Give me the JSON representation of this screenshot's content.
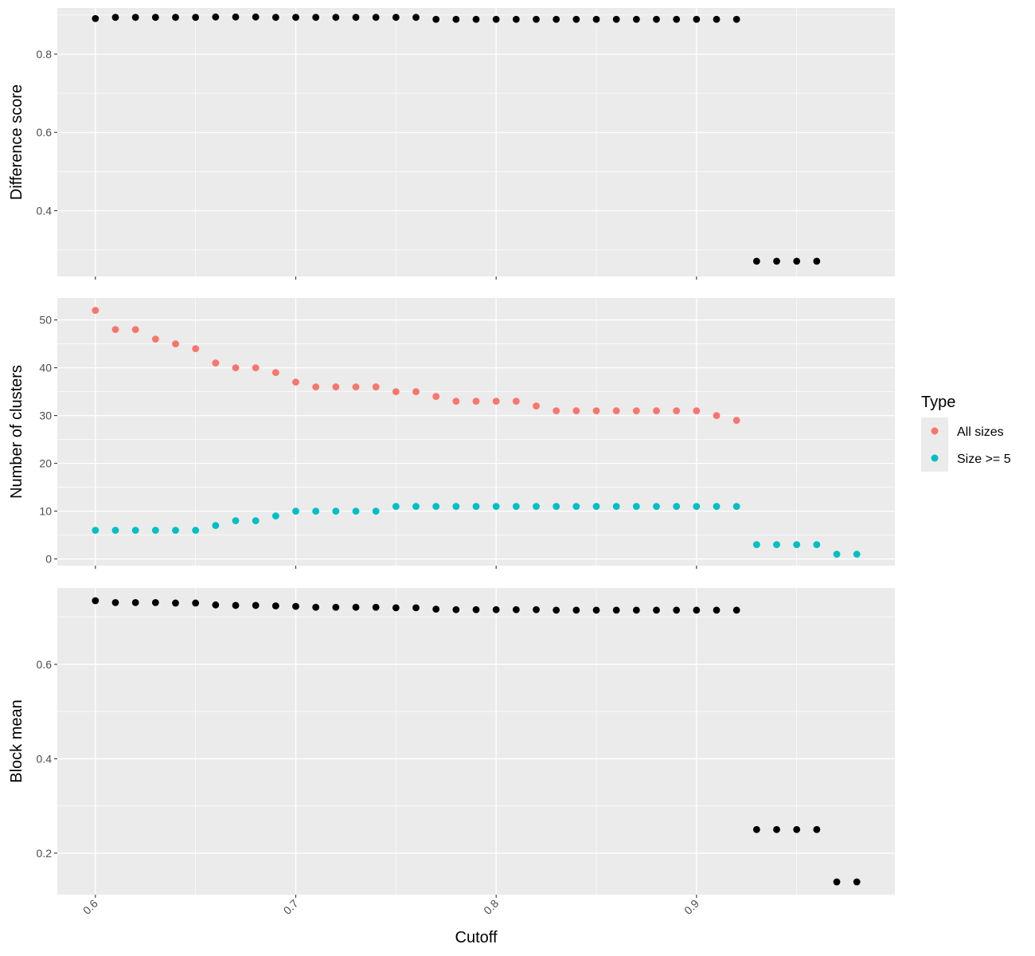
{
  "chart_data": {
    "type": "scatter",
    "x_axis": {
      "title": "Cutoff",
      "range": [
        0.581,
        0.999
      ],
      "ticks": [
        0.6,
        0.7,
        0.8,
        0.9
      ],
      "tick_labels": [
        "0.6",
        "0.7",
        "0.8",
        "0.9"
      ]
    },
    "legend": {
      "title": "Type",
      "placement": "right",
      "entries": [
        {
          "label": "All sizes",
          "color": "#F8766D"
        },
        {
          "label": "Size >= 5",
          "color": "#00BFC4"
        }
      ]
    },
    "background_color": "#EBEBEB",
    "grid": true,
    "panels": [
      {
        "ylabel": "Difference score",
        "ylim": [
          0.232,
          0.918
        ],
        "yticks": [
          0.4,
          0.6,
          0.8
        ],
        "ytick_labels": [
          "0.4",
          "0.6",
          "0.8"
        ],
        "series": [
          {
            "color": "#000000",
            "x": [
              0.6,
              0.61,
              0.62,
              0.63,
              0.64,
              0.65,
              0.66,
              0.67,
              0.68,
              0.69,
              0.7,
              0.71,
              0.72,
              0.73,
              0.74,
              0.75,
              0.76,
              0.77,
              0.78,
              0.79,
              0.8,
              0.81,
              0.82,
              0.83,
              0.84,
              0.85,
              0.86,
              0.87,
              0.88,
              0.89,
              0.9,
              0.91,
              0.92,
              0.93,
              0.94,
              0.95,
              0.96
            ],
            "y": [
              0.891,
              0.894,
              0.894,
              0.894,
              0.894,
              0.894,
              0.895,
              0.895,
              0.895,
              0.894,
              0.894,
              0.894,
              0.894,
              0.894,
              0.894,
              0.894,
              0.894,
              0.889,
              0.889,
              0.889,
              0.889,
              0.889,
              0.889,
              0.889,
              0.889,
              0.889,
              0.889,
              0.889,
              0.889,
              0.889,
              0.889,
              0.889,
              0.889,
              0.271,
              0.271,
              0.271,
              0.271
            ]
          }
        ]
      },
      {
        "ylabel": "Number of clusters",
        "ylim": [
          -1.4,
          54.6
        ],
        "yticks": [
          0,
          10,
          20,
          30,
          40,
          50
        ],
        "ytick_labels": [
          "0",
          "10",
          "20",
          "30",
          "40",
          "50"
        ],
        "series": [
          {
            "name": "All sizes",
            "color": "#F8766D",
            "x": [
              0.6,
              0.61,
              0.62,
              0.63,
              0.64,
              0.65,
              0.66,
              0.67,
              0.68,
              0.69,
              0.7,
              0.71,
              0.72,
              0.73,
              0.74,
              0.75,
              0.76,
              0.77,
              0.78,
              0.79,
              0.8,
              0.81,
              0.82,
              0.83,
              0.84,
              0.85,
              0.86,
              0.87,
              0.88,
              0.89,
              0.9,
              0.91,
              0.92
            ],
            "y": [
              52,
              48,
              48,
              46,
              45,
              44,
              41,
              40,
              40,
              39,
              37,
              36,
              36,
              36,
              36,
              35,
              35,
              34,
              33,
              33,
              33,
              33,
              32,
              31,
              31,
              31,
              31,
              31,
              31,
              31,
              31,
              30,
              29
            ]
          },
          {
            "name": "Size >= 5",
            "color": "#00BFC4",
            "x": [
              0.6,
              0.61,
              0.62,
              0.63,
              0.64,
              0.65,
              0.66,
              0.67,
              0.68,
              0.69,
              0.7,
              0.71,
              0.72,
              0.73,
              0.74,
              0.75,
              0.76,
              0.77,
              0.78,
              0.79,
              0.8,
              0.81,
              0.82,
              0.83,
              0.84,
              0.85,
              0.86,
              0.87,
              0.88,
              0.89,
              0.9,
              0.91,
              0.92,
              0.93,
              0.94,
              0.95,
              0.96,
              0.97,
              0.98
            ],
            "y": [
              6,
              6,
              6,
              6,
              6,
              6,
              7,
              8,
              8,
              9,
              10,
              10,
              10,
              10,
              10,
              11,
              11,
              11,
              11,
              11,
              11,
              11,
              11,
              11,
              11,
              11,
              11,
              11,
              11,
              11,
              11,
              11,
              11,
              3,
              3,
              3,
              3,
              1,
              1
            ]
          }
        ]
      },
      {
        "ylabel": "Block mean",
        "ylim": [
          0.112,
          0.762
        ],
        "yticks": [
          0.2,
          0.4,
          0.6
        ],
        "ytick_labels": [
          "0.2",
          "0.4",
          "0.6"
        ],
        "series": [
          {
            "color": "#000000",
            "x": [
              0.6,
              0.61,
              0.62,
              0.63,
              0.64,
              0.65,
              0.66,
              0.67,
              0.68,
              0.69,
              0.7,
              0.71,
              0.72,
              0.73,
              0.74,
              0.75,
              0.76,
              0.77,
              0.78,
              0.79,
              0.8,
              0.81,
              0.82,
              0.83,
              0.84,
              0.85,
              0.86,
              0.87,
              0.88,
              0.89,
              0.9,
              0.91,
              0.92,
              0.93,
              0.94,
              0.95,
              0.96,
              0.97,
              0.98
            ],
            "y": [
              0.735,
              0.731,
              0.731,
              0.731,
              0.73,
              0.73,
              0.726,
              0.725,
              0.725,
              0.724,
              0.723,
              0.721,
              0.721,
              0.721,
              0.721,
              0.72,
              0.72,
              0.717,
              0.716,
              0.716,
              0.716,
              0.716,
              0.716,
              0.715,
              0.715,
              0.715,
              0.715,
              0.715,
              0.715,
              0.715,
              0.715,
              0.715,
              0.715,
              0.25,
              0.25,
              0.25,
              0.25,
              0.139,
              0.139
            ]
          }
        ]
      }
    ]
  }
}
